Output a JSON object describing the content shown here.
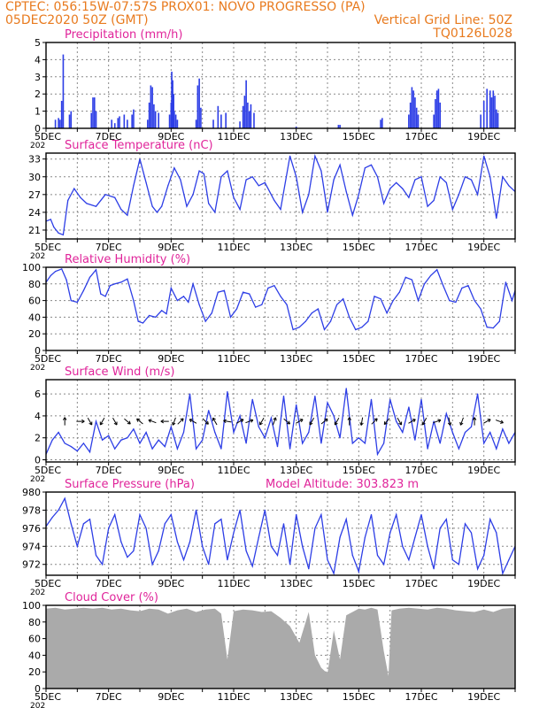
{
  "header": {
    "line1": "CPTEC:   056:15W-07:57S   PROX01: NOVO PROGRESSO (PA)",
    "line2_left": "05DEC2020 50Z (GMT)",
    "line2_right": "Vertical Grid Line: 50Z",
    "line3_right": "TQ0126L028"
  },
  "colors": {
    "header": "#e87a1e",
    "title": "#e0249a",
    "series": "#2d3ee6",
    "cloud": "#aaaaaa",
    "grid": "#888888"
  },
  "x_axis": {
    "labels": [
      "5DEC",
      "7DEC",
      "9DEC",
      "11DEC",
      "13DEC",
      "15DEC",
      "17DEC",
      "19DEC"
    ],
    "label_days": [
      5,
      7,
      9,
      11,
      13,
      15,
      17,
      19
    ],
    "day_range": [
      5,
      20
    ],
    "year_fragment": "202"
  },
  "chart_data": [
    {
      "type": "bar",
      "title": "Precipitation (mm/h)",
      "ylim": [
        0,
        5
      ],
      "yticks": [
        0,
        1,
        2,
        3,
        4,
        5
      ],
      "x": [
        5.3,
        5.4,
        5.45,
        5.5,
        5.55,
        5.75,
        5.8,
        6.45,
        6.5,
        6.55,
        6.6,
        7.1,
        7.2,
        7.3,
        7.35,
        7.5,
        7.6,
        7.75,
        7.8,
        8.25,
        8.3,
        8.35,
        8.4,
        8.45,
        8.5,
        8.6,
        8.95,
        9.0,
        9.02,
        9.05,
        9.08,
        9.1,
        9.15,
        9.2,
        9.8,
        9.85,
        9.9,
        9.95,
        10.35,
        10.5,
        10.6,
        10.75,
        11.2,
        11.3,
        11.35,
        11.4,
        11.45,
        11.5,
        11.55,
        11.65,
        13.0,
        14.35,
        14.4,
        15.7,
        15.75,
        16.6,
        16.65,
        16.7,
        16.75,
        16.8,
        16.85,
        16.9,
        17.4,
        17.45,
        17.5,
        17.55,
        17.6,
        18.9,
        19.0,
        19.1,
        19.2,
        19.25,
        19.3,
        19.35,
        19.4,
        19.45
      ],
      "values": [
        0.5,
        0.6,
        0.5,
        1.6,
        4.3,
        0.8,
        1.0,
        0.9,
        1.8,
        1.8,
        1.0,
        0.5,
        0.3,
        0.6,
        0.7,
        0.8,
        0.5,
        0.8,
        1.1,
        0.5,
        1.5,
        2.5,
        2.4,
        1.4,
        1.0,
        0.9,
        0.8,
        1.5,
        3.3,
        2.8,
        2.0,
        1.0,
        0.8,
        0.5,
        0.5,
        2.5,
        2.9,
        1.2,
        0.5,
        1.3,
        0.8,
        0.9,
        0.4,
        1.3,
        1.9,
        2.8,
        1.5,
        1.0,
        1.4,
        0.9,
        0.1,
        0.2,
        0.2,
        0.5,
        0.6,
        0.8,
        1.5,
        2.4,
        2.2,
        1.8,
        1.2,
        0.8,
        0.8,
        1.7,
        2.2,
        2.3,
        1.5,
        0.8,
        1.6,
        2.3,
        2.2,
        1.8,
        2.2,
        1.9,
        1.1,
        0.9
      ]
    },
    {
      "type": "line",
      "title": "Surface Temperature (nC)",
      "ylim": [
        19.5,
        34
      ],
      "yticks": [
        21,
        24,
        27,
        30,
        33
      ],
      "x": [
        5.0,
        5.15,
        5.25,
        5.4,
        5.55,
        5.7,
        5.9,
        6.1,
        6.3,
        6.6,
        6.9,
        7.2,
        7.4,
        7.6,
        7.8,
        8.0,
        8.2,
        8.4,
        8.55,
        8.7,
        8.9,
        9.1,
        9.3,
        9.5,
        9.7,
        9.9,
        10.05,
        10.2,
        10.4,
        10.6,
        10.8,
        11.0,
        11.2,
        11.4,
        11.6,
        11.8,
        12.0,
        12.3,
        12.5,
        12.8,
        13.0,
        13.2,
        13.4,
        13.6,
        13.8,
        14.0,
        14.2,
        14.4,
        14.6,
        14.8,
        15.0,
        15.2,
        15.4,
        15.6,
        15.8,
        16.0,
        16.2,
        16.4,
        16.6,
        16.8,
        17.0,
        17.2,
        17.4,
        17.6,
        17.8,
        18.0,
        18.2,
        18.4,
        18.6,
        18.8,
        19.0,
        19.2,
        19.4,
        19.6,
        19.8,
        20.0
      ],
      "values": [
        22.5,
        22.8,
        21.5,
        20.5,
        20.2,
        26.0,
        28.0,
        26.5,
        25.5,
        25.0,
        27.0,
        26.5,
        24.5,
        23.5,
        28.5,
        33.0,
        29.0,
        25.0,
        24.0,
        25.0,
        28.5,
        31.5,
        29.5,
        25.0,
        27.0,
        31.0,
        30.5,
        25.5,
        24.0,
        30.0,
        31.0,
        26.5,
        24.5,
        29.5,
        30.0,
        28.5,
        29.0,
        26.0,
        24.5,
        33.5,
        30.0,
        24.0,
        27.0,
        33.5,
        31.0,
        24.0,
        29.5,
        32.0,
        27.5,
        23.5,
        27.0,
        31.5,
        32.0,
        30.0,
        25.5,
        28.0,
        29.0,
        28.0,
        26.5,
        29.5,
        30.0,
        25.0,
        26.0,
        30.0,
        29.0,
        24.5,
        27.0,
        30.0,
        29.5,
        27.0,
        33.5,
        30.0,
        23.0,
        30.0,
        28.5,
        27.5
      ]
    },
    {
      "type": "line",
      "title": "Relative Humidity (%)",
      "ylim": [
        0,
        100
      ],
      "yticks": [
        0,
        20,
        40,
        60,
        80,
        100
      ],
      "x": [
        5.0,
        5.15,
        5.3,
        5.5,
        5.65,
        5.8,
        6.0,
        6.2,
        6.4,
        6.6,
        6.75,
        6.9,
        7.05,
        7.2,
        7.4,
        7.6,
        7.8,
        7.95,
        8.1,
        8.3,
        8.5,
        8.7,
        8.85,
        9.0,
        9.2,
        9.4,
        9.55,
        9.7,
        9.9,
        10.1,
        10.3,
        10.5,
        10.7,
        10.9,
        11.1,
        11.3,
        11.5,
        11.7,
        11.9,
        12.1,
        12.3,
        12.5,
        12.7,
        12.9,
        13.1,
        13.3,
        13.5,
        13.7,
        13.9,
        14.1,
        14.3,
        14.5,
        14.7,
        14.9,
        15.1,
        15.3,
        15.5,
        15.7,
        15.9,
        16.1,
        16.3,
        16.5,
        16.7,
        16.9,
        17.1,
        17.3,
        17.5,
        17.7,
        17.9,
        18.1,
        18.3,
        18.5,
        18.7,
        18.9,
        19.1,
        19.3,
        19.5,
        19.7,
        19.9,
        20.0
      ],
      "values": [
        82,
        90,
        95,
        98,
        85,
        60,
        58,
        72,
        88,
        97,
        68,
        65,
        78,
        80,
        82,
        86,
        60,
        35,
        33,
        42,
        40,
        48,
        44,
        75,
        60,
        65,
        58,
        80,
        55,
        35,
        45,
        70,
        72,
        40,
        50,
        70,
        68,
        52,
        55,
        75,
        78,
        65,
        55,
        25,
        28,
        35,
        45,
        50,
        25,
        35,
        55,
        62,
        40,
        25,
        28,
        35,
        65,
        62,
        45,
        60,
        70,
        88,
        85,
        60,
        80,
        90,
        97,
        78,
        60,
        58,
        75,
        78,
        60,
        50,
        28,
        27,
        35,
        82,
        60,
        72
      ]
    },
    {
      "type": "line",
      "title": "Surface Wind (m/s)",
      "ylim": [
        -0.2,
        7.3
      ],
      "yticks": [
        0,
        2,
        4,
        6
      ],
      "x": [
        5.0,
        5.2,
        5.4,
        5.6,
        5.8,
        6.0,
        6.2,
        6.4,
        6.6,
        6.8,
        7.0,
        7.2,
        7.4,
        7.6,
        7.8,
        8.0,
        8.2,
        8.4,
        8.6,
        8.8,
        9.0,
        9.2,
        9.4,
        9.6,
        9.8,
        10.0,
        10.2,
        10.4,
        10.6,
        10.8,
        11.0,
        11.2,
        11.4,
        11.6,
        11.8,
        12.0,
        12.2,
        12.4,
        12.6,
        12.8,
        13.0,
        13.2,
        13.4,
        13.6,
        13.8,
        14.0,
        14.2,
        14.4,
        14.6,
        14.8,
        15.0,
        15.2,
        15.4,
        15.6,
        15.8,
        16.0,
        16.2,
        16.4,
        16.6,
        16.8,
        17.0,
        17.2,
        17.4,
        17.6,
        17.8,
        18.0,
        18.2,
        18.4,
        18.6,
        18.8,
        19.0,
        19.2,
        19.4,
        19.6,
        19.8,
        20.0
      ],
      "values": [
        0.5,
        1.8,
        2.5,
        1.5,
        1.2,
        0.8,
        1.5,
        0.7,
        3.5,
        1.8,
        2.2,
        1.0,
        1.8,
        2.0,
        2.8,
        1.5,
        2.5,
        1.0,
        1.8,
        1.2,
        3.0,
        1.0,
        2.5,
        6.0,
        1.0,
        1.8,
        4.5,
        2.5,
        1.0,
        6.2,
        2.5,
        4.0,
        1.5,
        5.5,
        3.0,
        2.0,
        3.8,
        1.2,
        5.8,
        1.0,
        5.0,
        1.5,
        2.5,
        5.8,
        1.5,
        5.2,
        4.0,
        2.0,
        6.5,
        1.5,
        2.0,
        1.5,
        5.5,
        0.5,
        1.5,
        5.5,
        3.5,
        2.5,
        4.8,
        1.8,
        5.5,
        1.0,
        3.5,
        1.5,
        4.2,
        2.5,
        1.0,
        2.5,
        3.0,
        6.0,
        1.5,
        2.5,
        1.0,
        2.8,
        1.5,
        2.5
      ],
      "arrows_x": [
        5.6,
        6.1,
        6.4,
        6.8,
        7.2,
        7.6,
        8.0,
        8.4,
        8.8,
        9.1,
        9.3,
        9.7,
        10.1,
        10.4,
        10.8,
        11.2,
        11.5,
        11.9,
        12.3,
        12.7,
        13.1,
        13.5,
        13.9,
        14.3,
        14.7,
        15.1,
        15.5,
        15.9,
        16.3,
        16.7,
        17.1,
        17.5,
        17.9,
        18.3,
        18.7,
        19.1,
        19.5
      ],
      "arrows_angle_deg": [
        90,
        0,
        -60,
        -120,
        -60,
        -40,
        140,
        160,
        180,
        -110,
        45,
        150,
        -45,
        120,
        170,
        30,
        20,
        -120,
        70,
        -40,
        30,
        -120,
        40,
        -120,
        90,
        -100,
        45,
        -130,
        -60,
        30,
        -120,
        20,
        -80,
        -110,
        90,
        30,
        -20
      ]
    },
    {
      "type": "line",
      "title": "Surface Pressure (hPa)",
      "annotation": "Model Altitude: 303.823  m",
      "ylim": [
        970.8,
        980
      ],
      "yticks": [
        972,
        974,
        976,
        978,
        980
      ],
      "x": [
        5.0,
        5.2,
        5.4,
        5.6,
        5.8,
        6.0,
        6.2,
        6.4,
        6.6,
        6.8,
        7.0,
        7.2,
        7.4,
        7.6,
        7.8,
        8.0,
        8.2,
        8.4,
        8.6,
        8.8,
        9.0,
        9.2,
        9.4,
        9.6,
        9.8,
        10.0,
        10.2,
        10.4,
        10.6,
        10.8,
        11.0,
        11.2,
        11.4,
        11.6,
        11.8,
        12.0,
        12.2,
        12.4,
        12.6,
        12.8,
        13.0,
        13.2,
        13.4,
        13.6,
        13.8,
        14.0,
        14.2,
        14.4,
        14.6,
        14.8,
        15.0,
        15.2,
        15.4,
        15.6,
        15.8,
        16.0,
        16.2,
        16.4,
        16.6,
        16.8,
        17.0,
        17.2,
        17.4,
        17.6,
        17.8,
        18.0,
        18.2,
        18.4,
        18.6,
        18.8,
        19.0,
        19.2,
        19.4,
        19.6,
        19.8,
        20.0
      ],
      "values": [
        976.2,
        977.2,
        978.0,
        979.3,
        976.5,
        974.0,
        976.5,
        977.0,
        973.0,
        972.0,
        976.0,
        977.5,
        974.5,
        972.8,
        973.5,
        977.5,
        976.0,
        972.0,
        973.5,
        976.5,
        977.5,
        974.5,
        972.5,
        974.5,
        978.0,
        974.0,
        972.0,
        976.5,
        977.0,
        972.5,
        975.5,
        978.0,
        973.5,
        971.8,
        975.0,
        978.0,
        974.0,
        973.0,
        976.5,
        972.0,
        977.5,
        974.0,
        971.5,
        976.0,
        977.5,
        972.5,
        971.0,
        975.0,
        977.0,
        973.0,
        971.2,
        975.0,
        977.5,
        973.0,
        972.0,
        975.5,
        977.5,
        974.0,
        972.5,
        975.0,
        977.5,
        974.0,
        971.5,
        976.0,
        977.0,
        972.5,
        972.0,
        976.5,
        975.5,
        971.5,
        973.0,
        977.0,
        975.5,
        971.0,
        972.5,
        974.0
      ]
    },
    {
      "type": "area",
      "title": "Cloud Cover (%)",
      "ylim": [
        0,
        100
      ],
      "yticks": [
        0,
        20,
        40,
        60,
        80,
        100
      ],
      "x": [
        5.0,
        5.3,
        5.6,
        5.9,
        6.2,
        6.5,
        6.8,
        7.1,
        7.4,
        7.7,
        8.0,
        8.3,
        8.6,
        8.9,
        9.2,
        9.5,
        9.8,
        10.1,
        10.4,
        10.6,
        10.8,
        11.0,
        11.3,
        11.6,
        11.9,
        12.2,
        12.5,
        12.8,
        13.1,
        13.4,
        13.6,
        13.8,
        14.0,
        14.2,
        14.4,
        14.6,
        14.8,
        15.0,
        15.2,
        15.4,
        15.6,
        15.8,
        15.95,
        16.05,
        16.3,
        16.6,
        16.9,
        17.2,
        17.5,
        17.8,
        18.1,
        18.4,
        18.7,
        19.0,
        19.3,
        19.6,
        20.0
      ],
      "values": [
        96,
        97,
        95,
        96,
        97,
        96,
        97,
        95,
        96,
        94,
        93,
        96,
        95,
        90,
        94,
        96,
        92,
        95,
        96,
        90,
        35,
        93,
        95,
        94,
        92,
        93,
        85,
        75,
        55,
        92,
        40,
        25,
        18,
        70,
        35,
        88,
        92,
        96,
        95,
        97,
        95,
        45,
        15,
        94,
        96,
        97,
        96,
        95,
        97,
        96,
        94,
        93,
        92,
        95,
        92,
        96,
        97
      ]
    }
  ]
}
